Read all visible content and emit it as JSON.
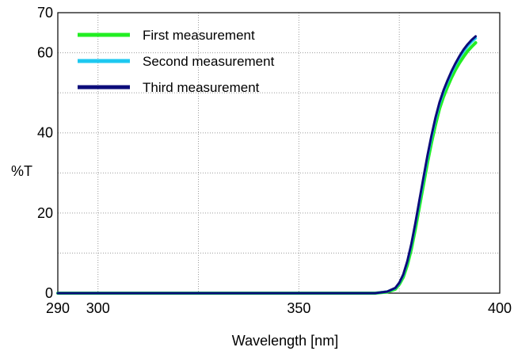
{
  "chart_data": {
    "type": "line",
    "title": "",
    "xlabel": "Wavelength [nm]",
    "ylabel": "%T",
    "xlim": [
      290,
      400
    ],
    "ylim": [
      0,
      70
    ],
    "x_ticks": [
      290,
      300,
      350,
      400
    ],
    "y_ticks": [
      0,
      20,
      40,
      60,
      70
    ],
    "grid": true,
    "legend_position": "top-left",
    "series": [
      {
        "name": "First measurement",
        "color": "#22ee22",
        "points": [
          [
            290,
            0
          ],
          [
            360,
            0
          ],
          [
            369,
            0
          ],
          [
            372,
            0.3
          ],
          [
            374,
            1.0
          ],
          [
            375,
            2.2
          ],
          [
            376,
            4.0
          ],
          [
            377,
            7.0
          ],
          [
            378,
            11.0
          ],
          [
            379,
            16.0
          ],
          [
            380,
            21.5
          ],
          [
            381,
            27.0
          ],
          [
            382,
            32.5
          ],
          [
            383,
            37.5
          ],
          [
            384,
            42.0
          ],
          [
            385,
            46.0
          ],
          [
            386,
            49.0
          ],
          [
            387,
            51.5
          ],
          [
            388,
            53.8
          ],
          [
            389,
            55.8
          ],
          [
            390,
            57.5
          ],
          [
            391,
            59.0
          ],
          [
            392,
            60.4
          ],
          [
            393,
            61.5
          ],
          [
            394,
            62.5
          ]
        ]
      },
      {
        "name": "Second measurement",
        "color": "#1ec8f0",
        "points": [
          [
            290,
            0
          ],
          [
            360,
            0
          ],
          [
            369,
            0
          ],
          [
            372,
            0.4
          ],
          [
            374,
            1.2
          ],
          [
            375,
            2.5
          ],
          [
            376,
            4.5
          ],
          [
            377,
            7.8
          ],
          [
            378,
            12.0
          ],
          [
            379,
            17.2
          ],
          [
            380,
            22.8
          ],
          [
            381,
            28.3
          ],
          [
            382,
            33.8
          ],
          [
            383,
            38.8
          ],
          [
            384,
            43.3
          ],
          [
            385,
            47.2
          ],
          [
            386,
            50.2
          ],
          [
            387,
            52.7
          ],
          [
            388,
            55.0
          ],
          [
            389,
            57.0
          ],
          [
            390,
            58.8
          ],
          [
            391,
            60.3
          ],
          [
            392,
            61.6
          ],
          [
            393,
            62.7
          ],
          [
            394,
            63.6
          ]
        ]
      },
      {
        "name": "Third measurement",
        "color": "#0c0c7a",
        "points": [
          [
            290,
            0
          ],
          [
            360,
            0
          ],
          [
            369,
            0
          ],
          [
            372,
            0.4
          ],
          [
            374,
            1.3
          ],
          [
            375,
            2.6
          ],
          [
            376,
            4.7
          ],
          [
            377,
            8.0
          ],
          [
            378,
            12.3
          ],
          [
            379,
            17.5
          ],
          [
            380,
            23.2
          ],
          [
            381,
            28.8
          ],
          [
            382,
            34.3
          ],
          [
            383,
            39.3
          ],
          [
            384,
            43.8
          ],
          [
            385,
            47.6
          ],
          [
            386,
            50.6
          ],
          [
            387,
            53.1
          ],
          [
            388,
            55.4
          ],
          [
            389,
            57.4
          ],
          [
            390,
            59.2
          ],
          [
            391,
            60.8
          ],
          [
            392,
            62.1
          ],
          [
            393,
            63.2
          ],
          [
            394,
            64.1
          ]
        ]
      }
    ]
  }
}
